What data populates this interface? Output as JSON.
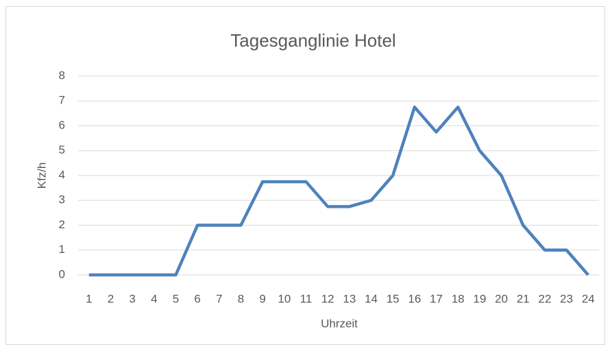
{
  "chart_data": {
    "type": "line",
    "title": "Tagesganglinie Hotel",
    "x_label": "Uhrzeit",
    "y_label": "Kfz/h",
    "categories": [
      1,
      2,
      3,
      4,
      5,
      6,
      7,
      8,
      9,
      10,
      11,
      12,
      13,
      14,
      15,
      16,
      17,
      18,
      19,
      20,
      21,
      22,
      23,
      24
    ],
    "series": [
      {
        "name": "Kfz/h",
        "color": "#4f81bd",
        "values": [
          0,
          0,
          0,
          0,
          0,
          2,
          2,
          2,
          3.75,
          3.75,
          3.75,
          2.75,
          2.75,
          3,
          4,
          6.75,
          5.75,
          6.75,
          5,
          4,
          2,
          1,
          1,
          0
        ]
      }
    ],
    "ylim": [
      0,
      8
    ],
    "yticks": [
      0,
      1,
      2,
      3,
      4,
      5,
      6,
      7,
      8
    ],
    "grid": true
  }
}
